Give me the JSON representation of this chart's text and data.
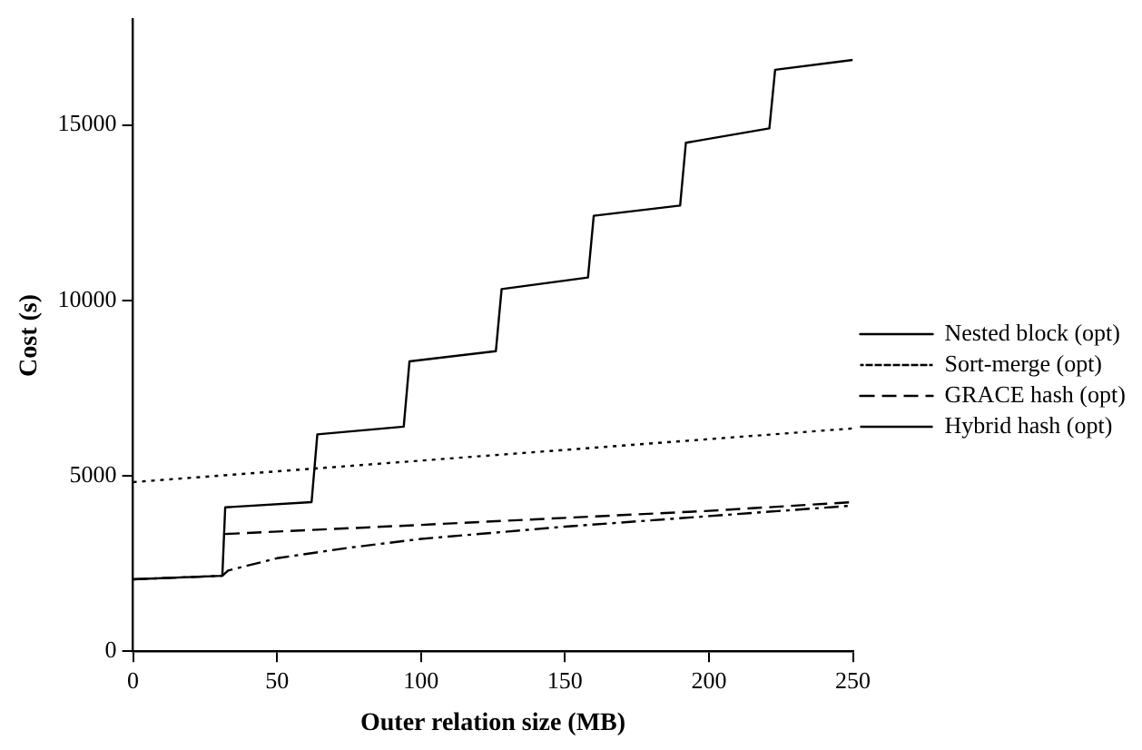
{
  "chart_data": {
    "type": "line",
    "xlabel": "Outer relation size (MB)",
    "ylabel": "Cost (s)",
    "xlim": [
      0,
      250
    ],
    "xticks": [
      0,
      50,
      100,
      150,
      200,
      250
    ],
    "ylim": [
      0,
      18000
    ],
    "yticks": [
      0,
      5000,
      10000,
      15000
    ],
    "grid": false,
    "legend": "right",
    "marker": "none",
    "series": [
      {
        "name": "Nested block (opt)",
        "color": "#000000",
        "line_style": "solid",
        "x": [
          0,
          31,
          32,
          62,
          64,
          94,
          96,
          126,
          128,
          158,
          160,
          190,
          192,
          221,
          223,
          250
        ],
        "values": [
          2050,
          2150,
          4100,
          4250,
          6180,
          6400,
          8260,
          8550,
          10320,
          10650,
          12410,
          12700,
          14490,
          14900,
          16570,
          16850
        ]
      },
      {
        "name": "Sort-merge (opt)",
        "color": "#000000",
        "line_style": "dotted",
        "x": [
          0,
          250
        ],
        "values": [
          4820,
          6350
        ]
      },
      {
        "name": "GRACE hash (opt)",
        "color": "#000000",
        "line_style": "dashed",
        "x": [
          32,
          100,
          150,
          200,
          250
        ],
        "values": [
          3340,
          3600,
          3800,
          4000,
          4250
        ]
      },
      {
        "name": "Hybrid hash (opt)",
        "color": "#000000",
        "line_style": "dashdot",
        "x": [
          0,
          31,
          33,
          50,
          75,
          100,
          150,
          200,
          250
        ],
        "values": [
          2050,
          2150,
          2300,
          2650,
          2950,
          3200,
          3550,
          3850,
          4150
        ]
      }
    ]
  }
}
